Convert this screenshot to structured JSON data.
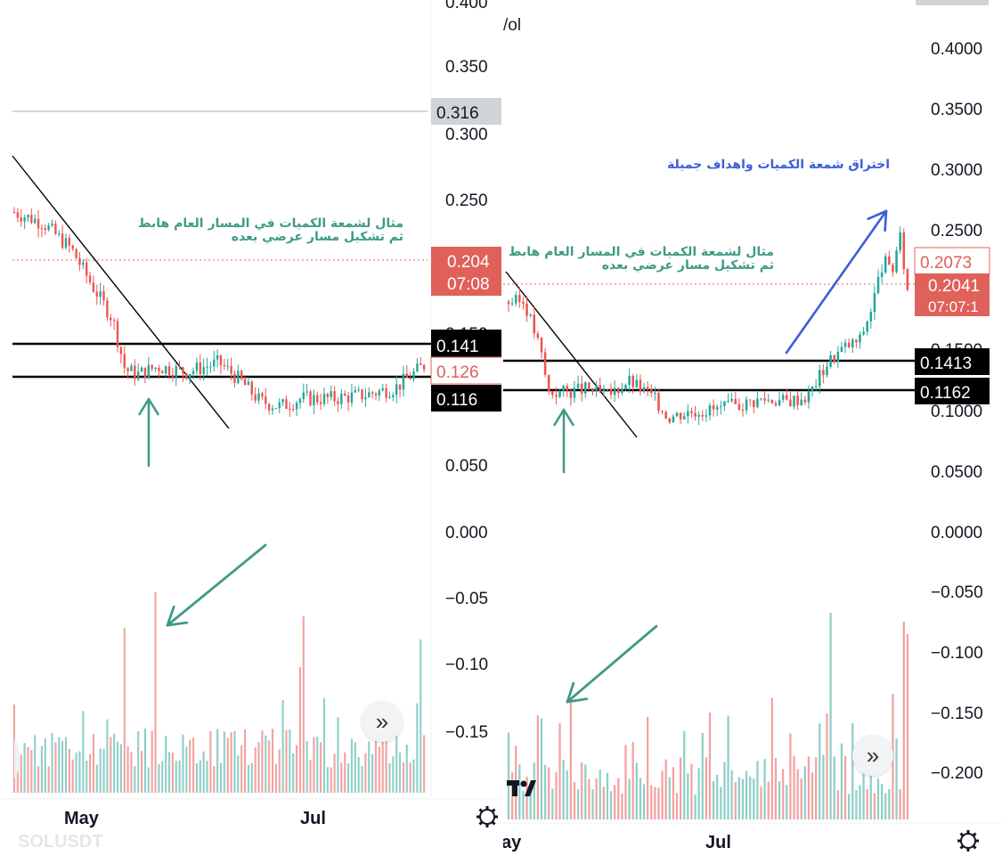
{
  "chart_data": [
    {
      "type": "candlestick",
      "symbol": "SOLUSDT",
      "x_ticks": [
        "May",
        "Jul"
      ],
      "y_ticks": [
        "0.400",
        "0.350",
        "0.300",
        "0.250",
        "0.150",
        "0.050",
        "0.000",
        "−0.05",
        "−0.10",
        "−0.15"
      ],
      "ylim": [
        -0.2,
        0.4
      ],
      "price_tags": [
        {
          "label": "0.316",
          "value": 0.316,
          "color": "#d0d3d8"
        },
        {
          "label": "0.204",
          "value": 0.2046,
          "color": "#e0605a"
        },
        {
          "label": "07:08",
          "color": "#e0605a"
        },
        {
          "label": "0.141",
          "value": 0.1413,
          "color": "#000000"
        },
        {
          "label": "0.126",
          "value": 0.1261,
          "color": "#ffffff"
        },
        {
          "label": "0.116",
          "value": 0.1162,
          "color": "#000000"
        }
      ],
      "levels": [
        0.1413,
        0.1162
      ],
      "annotation": [
        "مثال لشمعة الكميات في المسار العام هابط",
        "ثم تشكيل مسار عرضي بعده"
      ],
      "watermark": "SOLUSDT"
    },
    {
      "type": "candlestick",
      "x_ticks": [
        "May",
        "Jul"
      ],
      "y_ticks": [
        "0.4000",
        "0.3500",
        "0.3000",
        "0.2500",
        "0.1500",
        "0.1000",
        "0.0500",
        "0.0000",
        "−0.050",
        "−0.100",
        "−0.150",
        "−0.200"
      ],
      "ylim": [
        -0.2,
        0.4
      ],
      "price_tags": [
        {
          "label": "0.2073",
          "value": 0.2073,
          "color": "#ffffff"
        },
        {
          "label": "0.2041",
          "value": 0.2041,
          "color": "#e0605a"
        },
        {
          "label": "07:07:1",
          "color": "#e0605a"
        },
        {
          "label": "0.1413",
          "value": 0.1413,
          "color": "#000000"
        },
        {
          "label": "0.1162",
          "value": 0.1162,
          "color": "#000000"
        }
      ],
      "levels": [
        0.1413,
        0.1162
      ],
      "annotation": [
        "مثال لشمعة الكميات في المسار العام هابط",
        "ثم تشكيل مسار عرضي بعده"
      ],
      "annotation_breakout": "اختراق شمعة الكميات واهداف جميلة",
      "volume_label_partial": "/ol"
    }
  ],
  "colors": {
    "up": "#26a69a",
    "down": "#ef5350",
    "up_vol": "#8fcfc8",
    "down_vol": "#f2a3a1",
    "annotation_green": "#3f9a86",
    "annotation_blue": "#3a5fd6"
  },
  "icons": {
    "gear": "settings-gear-icon",
    "forward": "double-chevron-right-icon",
    "logo": "tradingview-logo-icon"
  }
}
